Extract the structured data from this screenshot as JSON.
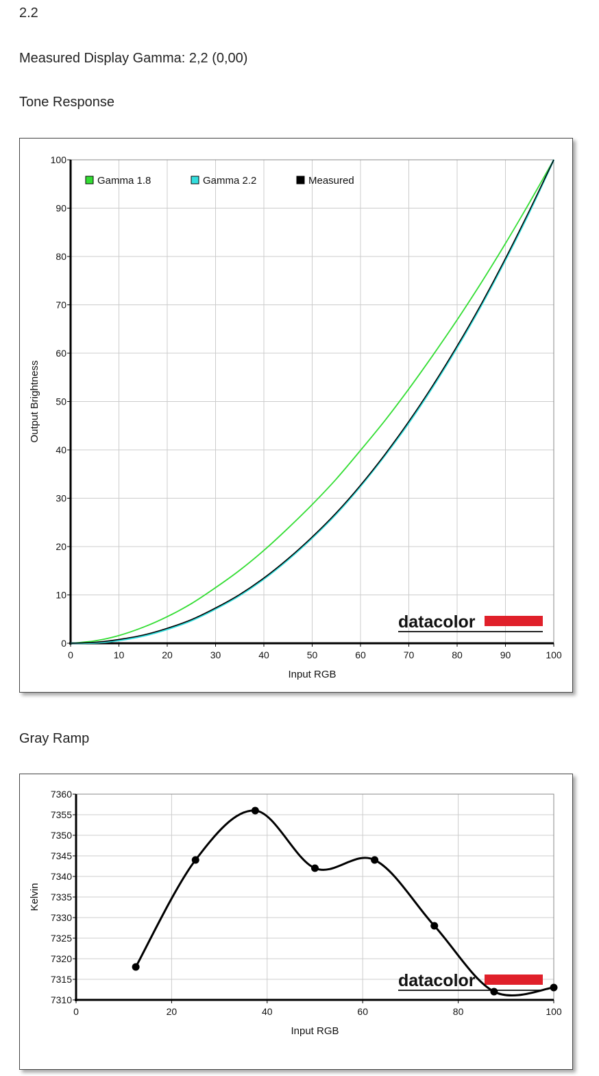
{
  "header": {
    "gamma_target": "2.2",
    "measured_gamma": "Measured Display Gamma: 2,2 (0,00)"
  },
  "sections": {
    "tone_title": "Tone Response",
    "gray_title": "Gray Ramp"
  },
  "logo": {
    "text": "datacolor",
    "accent": "#e0202a"
  },
  "colors": {
    "gamma18": "#33dd33",
    "gamma22": "#33dddd",
    "measured": "#000000",
    "grid": "#cccccc"
  },
  "chart_data": [
    {
      "type": "line",
      "xlabel": "Input RGB",
      "ylabel": "Output Brightness",
      "xlim": [
        0,
        100
      ],
      "ylim": [
        0,
        100
      ],
      "xticks": [
        "0",
        "10",
        "20",
        "30",
        "40",
        "50",
        "60",
        "70",
        "80",
        "90",
        "100"
      ],
      "yticks": [
        "0",
        "10",
        "20",
        "30",
        "40",
        "50",
        "60",
        "70",
        "80",
        "90",
        "100"
      ],
      "grid": true,
      "legend_position": "top-left",
      "series": [
        {
          "name": "Gamma 1.8",
          "color": "#33dd33",
          "gamma": 1.8,
          "x": [
            0,
            5,
            10,
            15,
            20,
            25,
            30,
            35,
            40,
            45,
            50,
            55,
            60,
            65,
            70,
            75,
            80,
            85,
            90,
            95,
            100
          ],
          "y": [
            0,
            0.5,
            1.6,
            3.3,
            5.5,
            8.2,
            11.5,
            15.1,
            19.2,
            23.8,
            28.7,
            34.0,
            39.9,
            46.0,
            52.6,
            59.6,
            66.9,
            74.6,
            82.7,
            91.2,
            100
          ]
        },
        {
          "name": "Gamma 2.2",
          "color": "#33dddd",
          "gamma": 2.2,
          "x": [
            0,
            5,
            10,
            15,
            20,
            25,
            30,
            35,
            40,
            45,
            50,
            55,
            60,
            65,
            70,
            75,
            80,
            85,
            90,
            95,
            100
          ],
          "y": [
            0,
            0.1,
            0.6,
            1.5,
            2.9,
            4.7,
            7.1,
            9.9,
            13.3,
            17.3,
            21.8,
            26.8,
            32.5,
            38.8,
            45.6,
            53.1,
            61.2,
            69.9,
            79.3,
            89.3,
            100
          ]
        },
        {
          "name": "Measured",
          "color": "#000000",
          "x": [
            0,
            5,
            10,
            15,
            20,
            25,
            30,
            35,
            40,
            45,
            50,
            55,
            60,
            65,
            70,
            75,
            80,
            85,
            90,
            95,
            100
          ],
          "y": [
            0,
            0.2,
            0.8,
            1.7,
            3.1,
            4.9,
            7.3,
            10.1,
            13.5,
            17.5,
            22.0,
            27.0,
            32.7,
            39.0,
            45.9,
            53.4,
            61.5,
            70.2,
            79.6,
            89.6,
            100
          ]
        }
      ]
    },
    {
      "type": "line",
      "xlabel": "Input RGB",
      "ylabel": "Kelvin",
      "xlim": [
        0,
        100
      ],
      "ylim": [
        7310,
        7360
      ],
      "xticks": [
        "0",
        "20",
        "40",
        "60",
        "80",
        "100"
      ],
      "yticks": [
        "7310",
        "7315",
        "7320",
        "7325",
        "7330",
        "7335",
        "7340",
        "7345",
        "7350",
        "7355",
        "7360"
      ],
      "grid": true,
      "series": [
        {
          "color": "#000000",
          "x": [
            12.5,
            25,
            37.5,
            50,
            62.5,
            75,
            87.5,
            100
          ],
          "y": [
            7318,
            7344,
            7356,
            7342,
            7344,
            7328,
            7312,
            7313
          ]
        }
      ]
    }
  ]
}
